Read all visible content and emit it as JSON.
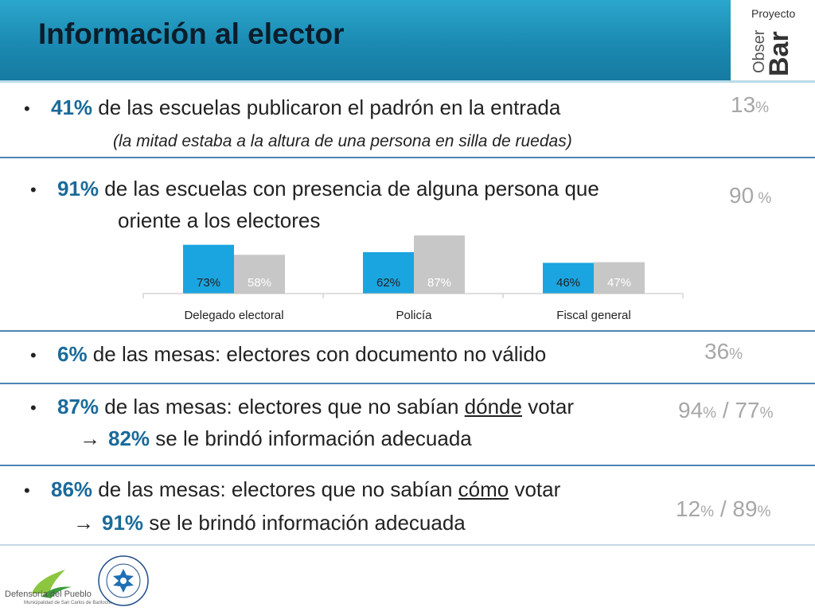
{
  "header": {
    "title": "Información al elector",
    "logo": {
      "proyecto": "Proyecto",
      "obser": "Obser",
      "bar": "Bar"
    }
  },
  "items": [
    {
      "pct": "41%",
      "text": " de las escuelas publicaron el padrón en la entrada",
      "note": "(la mitad estaba a la altura de una persona en silla de ruedas)",
      "side_a": "13",
      "side_a_unit": "%"
    },
    {
      "pct": "91%",
      "text": " de las escuelas con presencia de alguna persona que",
      "cont": "oriente a los electores",
      "side_a": "90",
      "side_a_unit": " %"
    },
    {
      "pct": "6%",
      "text": "  de las mesas: electores con documento no válido",
      "side_a": "36",
      "side_a_unit": "%"
    },
    {
      "pct": "87%",
      "text_before": " de las mesas: electores que no sabían ",
      "underlined": "dónde",
      "text_after": " votar",
      "arrow": "→",
      "sub_pct": "82%",
      "sub_text": " se le brindó información adecuada",
      "side_a": "94",
      "side_a_unit": "%",
      "side_sep": " / ",
      "side_b": "77",
      "side_b_unit": "%"
    },
    {
      "pct": "86%",
      "text_before": " de las mesas: electores que no sabían ",
      "underlined": "cómo",
      "text_after": " votar",
      "arrow": "→",
      "sub_pct": "91%",
      "sub_text": " se le brindó información adecuada",
      "side_a": "12",
      "side_a_unit": "%",
      "side_sep": " / ",
      "side_b": "89",
      "side_b_unit": "%"
    }
  ],
  "bullet": "•",
  "chart_data": {
    "type": "bar",
    "categories": [
      "Delegado electoral",
      "Policía",
      "Fiscal general"
    ],
    "series": [
      {
        "values": [
          73,
          62,
          46
        ],
        "labels": [
          "73%",
          "62%",
          "46%"
        ],
        "color": "#1aa5e0"
      },
      {
        "values": [
          58,
          87,
          47
        ],
        "labels": [
          "58%",
          "87%",
          "47%"
        ],
        "color": "#c7c7c7"
      }
    ],
    "ylim": [
      0,
      100
    ],
    "data_label_colors": [
      "#222222",
      "#ffffff"
    ]
  },
  "footer": {
    "org": "Defensoría del Pueblo",
    "org_sub": "Municipalidad de San Carlos de Bariloche",
    "seal_top": "UNIVERSIDAD NACIONAL DEL COMAHUE",
    "seal_year": "1972"
  },
  "colors": {
    "header": "#1b8ab2",
    "accent": "#1a6a9a",
    "divider": "#4d84b7",
    "side": "#a7a7a7"
  }
}
